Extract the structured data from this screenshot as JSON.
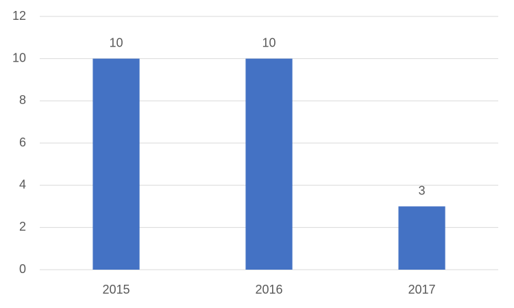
{
  "chart_data": {
    "type": "bar",
    "categories": [
      "2015",
      "2016",
      "2017"
    ],
    "values": [
      10,
      10,
      3
    ],
    "color": "#4472c4",
    "ylim": [
      0,
      12
    ],
    "yticks": [
      0,
      2,
      4,
      6,
      8,
      10,
      12
    ],
    "grid": true,
    "data_labels": true
  }
}
